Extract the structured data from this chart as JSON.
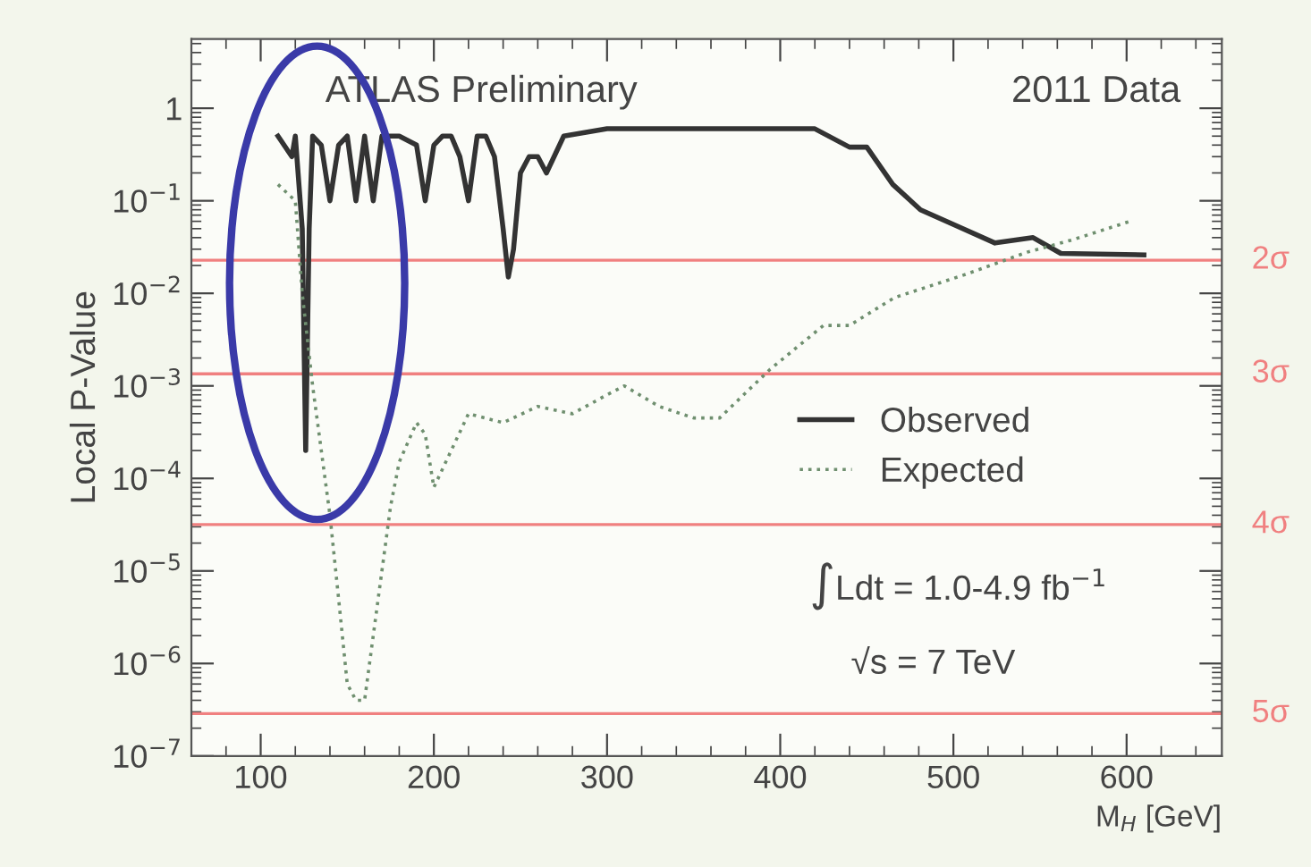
{
  "chart_data": {
    "type": "line",
    "ylabel": "Local P-Value",
    "xlabel": "M$_{H}$ [GeV]",
    "annotations": [
      "ATLAS Preliminary",
      "2011 Data",
      "∫Ldt = 1.0-4.9 fb$^{−1}$",
      "√s = 7 TeV"
    ],
    "log": "y",
    "grid": false,
    "legend": "center right",
    "xlim": [
      60,
      655
    ],
    "xticks": [
      100,
      200,
      300,
      400,
      500,
      600
    ],
    "ylim": [
      1e-07,
      5.6
    ],
    "yticks": [
      {
        "value": 1e-07,
        "label": "10$^{−7}$"
      },
      {
        "value": 1e-06,
        "label": "10$^{−6}$"
      },
      {
        "value": 1e-05,
        "label": "10$^{−5}$"
      },
      {
        "value": 0.0001,
        "label": "10$^{−4}$"
      },
      {
        "value": 0.001,
        "label": "10$^{−3}$"
      },
      {
        "value": 0.01,
        "label": "10$^{−2}$"
      },
      {
        "value": 0.1,
        "label": "10$^{−1}$"
      },
      1
    ],
    "ref_lines": [
      {
        "axis": "y",
        "value": 0.0228,
        "label": "2σ",
        "color": "#f08080"
      },
      {
        "axis": "y",
        "value": 0.00135,
        "label": "3σ",
        "color": "#f08080"
      },
      {
        "axis": "y",
        "value": 3.17e-05,
        "label": "4σ",
        "color": "#f08080"
      },
      {
        "axis": "y",
        "value": 2.87e-07,
        "label": "5σ",
        "color": "#f08080"
      }
    ],
    "series": [
      {
        "name": "Observed",
        "color": "#333333",
        "line_style": "solid",
        "x": [
          110,
          118,
          120,
          124,
          126,
          128,
          130,
          135,
          140,
          145,
          150,
          155,
          160,
          165,
          170,
          180,
          190,
          195,
          200,
          205,
          210,
          215,
          220,
          225,
          230,
          235,
          240,
          243,
          246,
          250,
          255,
          260,
          265,
          275,
          300,
          420,
          440,
          450,
          465,
          481,
          524,
          546,
          562,
          610
        ],
        "values": [
          0.5,
          0.3,
          0.5,
          0.05,
          0.0002,
          0.05,
          0.5,
          0.4,
          0.1,
          0.4,
          0.5,
          0.1,
          0.5,
          0.1,
          0.5,
          0.5,
          0.4,
          0.1,
          0.4,
          0.5,
          0.5,
          0.3,
          0.1,
          0.5,
          0.5,
          0.3,
          0.05,
          0.015,
          0.03,
          0.2,
          0.3,
          0.3,
          0.2,
          0.5,
          0.6,
          0.6,
          0.38,
          0.38,
          0.15,
          0.08,
          0.035,
          0.04,
          0.027,
          0.026
        ]
      },
      {
        "name": "Expected",
        "color": "#6f8f6f",
        "line_style": "dotted",
        "x": [
          110,
          120,
          124,
          130,
          135,
          140,
          145,
          150,
          155,
          160,
          165,
          170,
          175,
          180,
          190,
          195,
          200,
          210,
          220,
          240,
          260,
          280,
          300,
          310,
          330,
          350,
          365,
          394,
          425,
          440,
          466,
          507,
          543,
          569,
          602
        ],
        "values": [
          0.15,
          0.1,
          0.01,
          0.001,
          0.0002,
          4e-05,
          5e-06,
          6e-07,
          4e-07,
          4e-07,
          2e-06,
          1e-05,
          5e-05,
          0.00015,
          0.0004,
          0.0003,
          8e-05,
          0.0002,
          0.0005,
          0.0004,
          0.0006,
          0.0005,
          0.0008,
          0.001,
          0.0006,
          0.00045,
          0.00045,
          0.0015,
          0.0045,
          0.0045,
          0.009,
          0.016,
          0.028,
          0.038,
          0.06
        ]
      }
    ]
  }
}
